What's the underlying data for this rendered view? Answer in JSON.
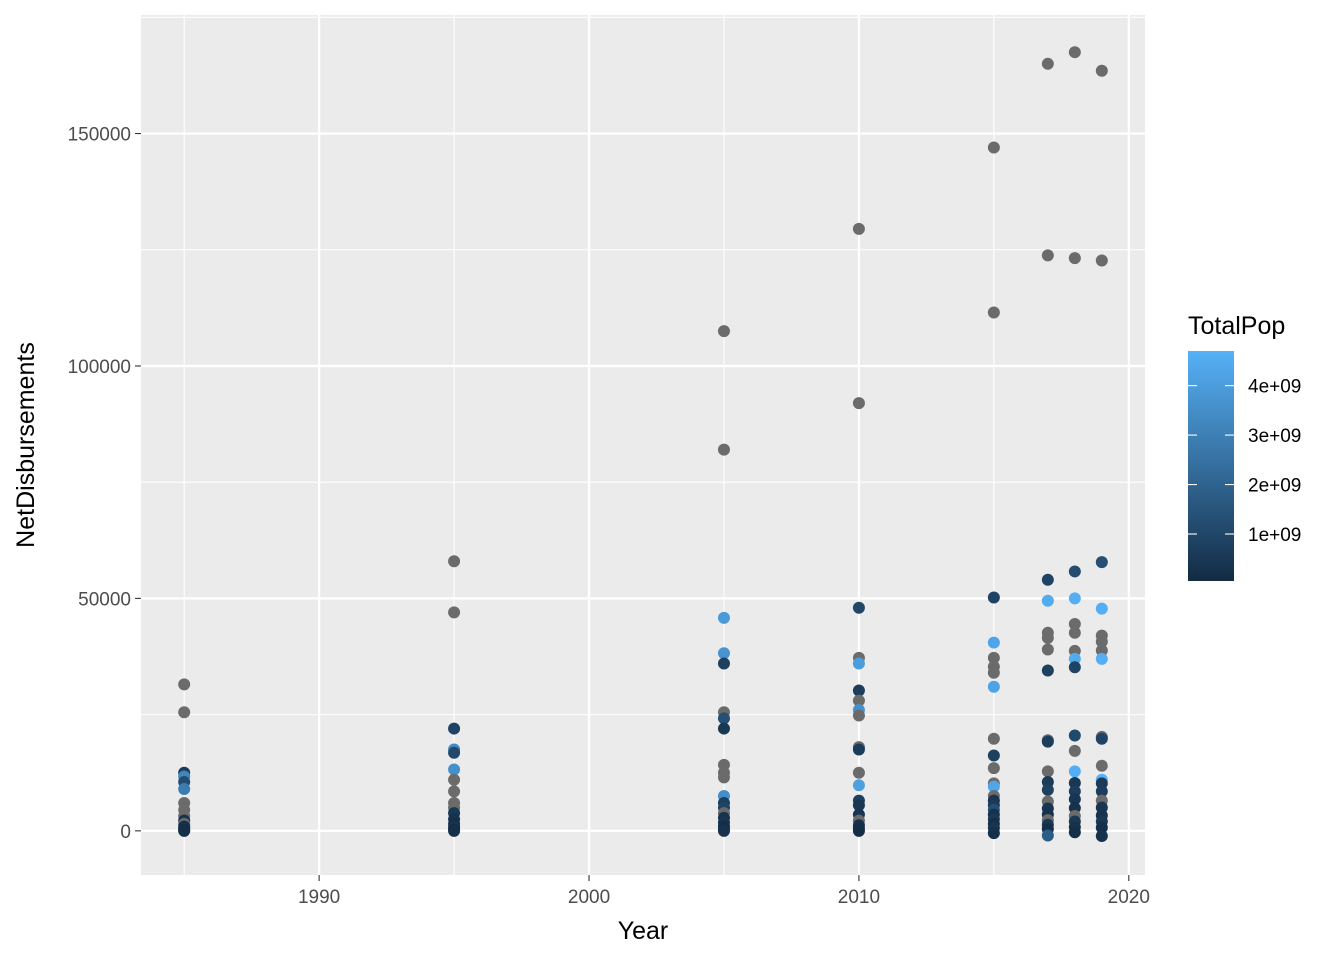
{
  "chart_data": {
    "type": "scatter",
    "xlabel": "Year",
    "ylabel": "NetDisbursements",
    "xlim": [
      1983.4,
      2020.6
    ],
    "ylim": [
      -9500,
      175500
    ],
    "x_ticks": [
      1990,
      2000,
      2010,
      2020
    ],
    "x_tick_labels": [
      "1990",
      "2000",
      "2010",
      "2020"
    ],
    "y_ticks": [
      0,
      50000,
      100000,
      150000
    ],
    "y_tick_labels": [
      "0",
      "50000",
      "100000",
      "150000"
    ],
    "grid": true,
    "legend": {
      "title": "TotalPop",
      "placement": "right",
      "color_low": "#132B43",
      "color_high": "#56B1F7",
      "na_color": "#6b6b6b",
      "range": [
        50000000,
        4700000000
      ],
      "breaks": [
        1000000000,
        2000000000,
        3000000000,
        4000000000
      ],
      "labels": [
        "1e+09",
        "2e+09",
        "3e+09",
        "4e+09"
      ]
    },
    "points": [
      {
        "x": 1985,
        "y": 31500,
        "c": "na"
      },
      {
        "x": 1985,
        "y": 25500,
        "c": "na"
      },
      {
        "x": 1985,
        "y": 12500,
        "c": 0.6
      },
      {
        "x": 1985,
        "y": 11700,
        "c": 3.2
      },
      {
        "x": 1985,
        "y": 10500,
        "c": 1.2
      },
      {
        "x": 1985,
        "y": 9000,
        "c": 2.9
      },
      {
        "x": 1985,
        "y": 6000,
        "c": "na"
      },
      {
        "x": 1985,
        "y": 4500,
        "c": "na"
      },
      {
        "x": 1985,
        "y": 3200,
        "c": "na"
      },
      {
        "x": 1985,
        "y": 2200,
        "c": 0.3
      },
      {
        "x": 1985,
        "y": 1500,
        "c": "na"
      },
      {
        "x": 1985,
        "y": 900,
        "c": 0.2
      },
      {
        "x": 1985,
        "y": 500,
        "c": 0.4
      },
      {
        "x": 1985,
        "y": 200,
        "c": 0.1
      },
      {
        "x": 1985,
        "y": 0,
        "c": 0.2
      },
      {
        "x": 1995,
        "y": 58000,
        "c": "na"
      },
      {
        "x": 1995,
        "y": 47000,
        "c": "na"
      },
      {
        "x": 1995,
        "y": 22000,
        "c": 0.9
      },
      {
        "x": 1995,
        "y": 17500,
        "c": 3.3
      },
      {
        "x": 1995,
        "y": 16800,
        "c": 1.1
      },
      {
        "x": 1995,
        "y": 13200,
        "c": 3.6
      },
      {
        "x": 1995,
        "y": 11000,
        "c": "na"
      },
      {
        "x": 1995,
        "y": 8500,
        "c": "na"
      },
      {
        "x": 1995,
        "y": 6000,
        "c": "na"
      },
      {
        "x": 1995,
        "y": 5000,
        "c": "na"
      },
      {
        "x": 1995,
        "y": 3800,
        "c": 0.5
      },
      {
        "x": 1995,
        "y": 2500,
        "c": 0.3
      },
      {
        "x": 1995,
        "y": 1500,
        "c": 0.2
      },
      {
        "x": 1995,
        "y": 800,
        "c": 0.4
      },
      {
        "x": 1995,
        "y": 300,
        "c": 0.1
      },
      {
        "x": 1995,
        "y": 0,
        "c": 0.2
      },
      {
        "x": 2005,
        "y": 107500,
        "c": "na"
      },
      {
        "x": 2005,
        "y": 82000,
        "c": "na"
      },
      {
        "x": 2005,
        "y": 45800,
        "c": 3.9
      },
      {
        "x": 2005,
        "y": 38200,
        "c": 3.7
      },
      {
        "x": 2005,
        "y": 36000,
        "c": 0.8
      },
      {
        "x": 2005,
        "y": 25500,
        "c": "na"
      },
      {
        "x": 2005,
        "y": 24200,
        "c": 1.3
      },
      {
        "x": 2005,
        "y": 22000,
        "c": 0.5
      },
      {
        "x": 2005,
        "y": 14200,
        "c": "na"
      },
      {
        "x": 2005,
        "y": 12500,
        "c": "na"
      },
      {
        "x": 2005,
        "y": 11500,
        "c": "na"
      },
      {
        "x": 2005,
        "y": 7500,
        "c": 3.5
      },
      {
        "x": 2005,
        "y": 6000,
        "c": 0.7
      },
      {
        "x": 2005,
        "y": 5000,
        "c": 0.9
      },
      {
        "x": 2005,
        "y": 3800,
        "c": "na"
      },
      {
        "x": 2005,
        "y": 2800,
        "c": 0.3
      },
      {
        "x": 2005,
        "y": 1800,
        "c": 0.4
      },
      {
        "x": 2005,
        "y": 1000,
        "c": 0.2
      },
      {
        "x": 2005,
        "y": 400,
        "c": 0.1
      },
      {
        "x": 2005,
        "y": 0,
        "c": 0.3
      },
      {
        "x": 2010,
        "y": 129500,
        "c": "na"
      },
      {
        "x": 2010,
        "y": 92000,
        "c": "na"
      },
      {
        "x": 2010,
        "y": 48000,
        "c": 1.0
      },
      {
        "x": 2010,
        "y": 37200,
        "c": "na"
      },
      {
        "x": 2010,
        "y": 36000,
        "c": 4.0
      },
      {
        "x": 2010,
        "y": 30200,
        "c": 0.7
      },
      {
        "x": 2010,
        "y": 28000,
        "c": "na"
      },
      {
        "x": 2010,
        "y": 26000,
        "c": 3.6
      },
      {
        "x": 2010,
        "y": 24800,
        "c": "na"
      },
      {
        "x": 2010,
        "y": 18000,
        "c": "na"
      },
      {
        "x": 2010,
        "y": 17500,
        "c": 0.6
      },
      {
        "x": 2010,
        "y": 12500,
        "c": "na"
      },
      {
        "x": 2010,
        "y": 9800,
        "c": 4.1
      },
      {
        "x": 2010,
        "y": 6500,
        "c": 0.8
      },
      {
        "x": 2010,
        "y": 5500,
        "c": 0.5
      },
      {
        "x": 2010,
        "y": 3500,
        "c": 0.4
      },
      {
        "x": 2010,
        "y": 2200,
        "c": "na"
      },
      {
        "x": 2010,
        "y": 1200,
        "c": 0.3
      },
      {
        "x": 2010,
        "y": 500,
        "c": 0.2
      },
      {
        "x": 2010,
        "y": 0,
        "c": 0.1
      },
      {
        "x": 2015,
        "y": 147000,
        "c": "na"
      },
      {
        "x": 2015,
        "y": 111500,
        "c": "na"
      },
      {
        "x": 2015,
        "y": 50200,
        "c": 0.9
      },
      {
        "x": 2015,
        "y": 40500,
        "c": 4.3
      },
      {
        "x": 2015,
        "y": 37200,
        "c": "na"
      },
      {
        "x": 2015,
        "y": 35300,
        "c": "na"
      },
      {
        "x": 2015,
        "y": 34000,
        "c": "na"
      },
      {
        "x": 2015,
        "y": 31000,
        "c": 4.2
      },
      {
        "x": 2015,
        "y": 19800,
        "c": "na"
      },
      {
        "x": 2015,
        "y": 16200,
        "c": 0.8
      },
      {
        "x": 2015,
        "y": 13500,
        "c": "na"
      },
      {
        "x": 2015,
        "y": 10200,
        "c": "na"
      },
      {
        "x": 2015,
        "y": 9500,
        "c": 4.3
      },
      {
        "x": 2015,
        "y": 7500,
        "c": "na"
      },
      {
        "x": 2015,
        "y": 6500,
        "c": 0.4
      },
      {
        "x": 2015,
        "y": 5500,
        "c": 0.6
      },
      {
        "x": 2015,
        "y": 4500,
        "c": 1.3
      },
      {
        "x": 2015,
        "y": 3500,
        "c": 0.3
      },
      {
        "x": 2015,
        "y": 2500,
        "c": 0.5
      },
      {
        "x": 2015,
        "y": 1500,
        "c": 0.2
      },
      {
        "x": 2015,
        "y": 600,
        "c": 0.4
      },
      {
        "x": 2015,
        "y": -500,
        "c": 0.2
      },
      {
        "x": 2017,
        "y": 165000,
        "c": "na"
      },
      {
        "x": 2017,
        "y": 123800,
        "c": "na"
      },
      {
        "x": 2017,
        "y": 54000,
        "c": 0.9
      },
      {
        "x": 2017,
        "y": 49500,
        "c": 4.5
      },
      {
        "x": 2017,
        "y": 42600,
        "c": "na"
      },
      {
        "x": 2017,
        "y": 41500,
        "c": "na"
      },
      {
        "x": 2017,
        "y": 39000,
        "c": "na"
      },
      {
        "x": 2017,
        "y": 34500,
        "c": 0.8
      },
      {
        "x": 2017,
        "y": 19500,
        "c": "na"
      },
      {
        "x": 2017,
        "y": 19200,
        "c": 0.7
      },
      {
        "x": 2017,
        "y": 12800,
        "c": "na"
      },
      {
        "x": 2017,
        "y": 10500,
        "c": 0.6
      },
      {
        "x": 2017,
        "y": 8800,
        "c": 0.8
      },
      {
        "x": 2017,
        "y": 6300,
        "c": "na"
      },
      {
        "x": 2017,
        "y": 4800,
        "c": 0.4
      },
      {
        "x": 2017,
        "y": 3500,
        "c": 0.3
      },
      {
        "x": 2017,
        "y": 2300,
        "c": "na"
      },
      {
        "x": 2017,
        "y": 1300,
        "c": 0.5
      },
      {
        "x": 2017,
        "y": 400,
        "c": 0.2
      },
      {
        "x": 2017,
        "y": -1000,
        "c": 1.8
      },
      {
        "x": 2018,
        "y": 167500,
        "c": "na"
      },
      {
        "x": 2018,
        "y": 123200,
        "c": "na"
      },
      {
        "x": 2018,
        "y": 55800,
        "c": 1.2
      },
      {
        "x": 2018,
        "y": 50000,
        "c": 4.6
      },
      {
        "x": 2018,
        "y": 44500,
        "c": "na"
      },
      {
        "x": 2018,
        "y": 42600,
        "c": "na"
      },
      {
        "x": 2018,
        "y": 38700,
        "c": "na"
      },
      {
        "x": 2018,
        "y": 37000,
        "c": 4.5
      },
      {
        "x": 2018,
        "y": 35200,
        "c": 0.9
      },
      {
        "x": 2018,
        "y": 20500,
        "c": 1.1
      },
      {
        "x": 2018,
        "y": 17200,
        "c": "na"
      },
      {
        "x": 2018,
        "y": 12800,
        "c": 4.6
      },
      {
        "x": 2018,
        "y": 10300,
        "c": 0.5
      },
      {
        "x": 2018,
        "y": 8500,
        "c": 0.7
      },
      {
        "x": 2018,
        "y": 6800,
        "c": 0.4
      },
      {
        "x": 2018,
        "y": 4900,
        "c": 0.3
      },
      {
        "x": 2018,
        "y": 3200,
        "c": "na"
      },
      {
        "x": 2018,
        "y": 2000,
        "c": 0.5
      },
      {
        "x": 2018,
        "y": 800,
        "c": 0.3
      },
      {
        "x": 2018,
        "y": -300,
        "c": 0.2
      },
      {
        "x": 2019,
        "y": 163500,
        "c": "na"
      },
      {
        "x": 2019,
        "y": 122700,
        "c": "na"
      },
      {
        "x": 2019,
        "y": 57800,
        "c": 1.3
      },
      {
        "x": 2019,
        "y": 47800,
        "c": 4.6
      },
      {
        "x": 2019,
        "y": 42000,
        "c": "na"
      },
      {
        "x": 2019,
        "y": 40700,
        "c": "na"
      },
      {
        "x": 2019,
        "y": 38800,
        "c": "na"
      },
      {
        "x": 2019,
        "y": 37000,
        "c": 4.6
      },
      {
        "x": 2019,
        "y": 20200,
        "c": "na"
      },
      {
        "x": 2019,
        "y": 19800,
        "c": 0.9
      },
      {
        "x": 2019,
        "y": 14000,
        "c": "na"
      },
      {
        "x": 2019,
        "y": 11000,
        "c": 4.7
      },
      {
        "x": 2019,
        "y": 10200,
        "c": 0.6
      },
      {
        "x": 2019,
        "y": 8500,
        "c": 0.7
      },
      {
        "x": 2019,
        "y": 6500,
        "c": "na"
      },
      {
        "x": 2019,
        "y": 5000,
        "c": 0.4
      },
      {
        "x": 2019,
        "y": 3300,
        "c": 0.3
      },
      {
        "x": 2019,
        "y": 2000,
        "c": 0.5
      },
      {
        "x": 2019,
        "y": 700,
        "c": 0.2
      },
      {
        "x": 2019,
        "y": -1100,
        "c": 0.3
      }
    ]
  }
}
